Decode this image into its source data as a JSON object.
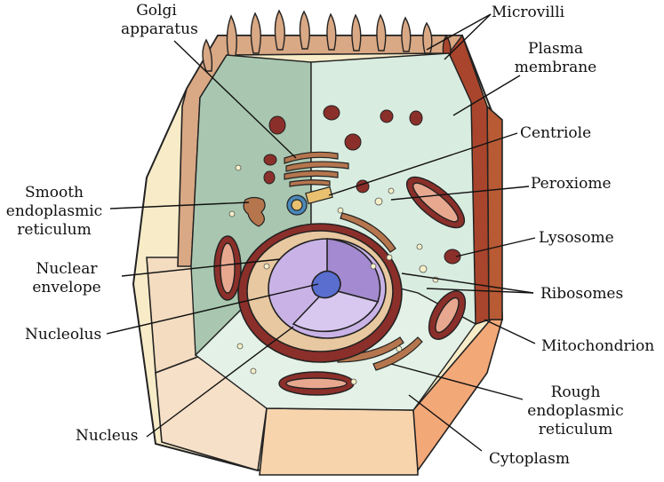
{
  "diagram": {
    "labels": {
      "golgi_1": "Golgi",
      "golgi_2": "apparatus",
      "microvilli": "Microvilli",
      "plasma_1": "Plasma",
      "plasma_2": "membrane",
      "centriole": "Centriole",
      "peroxiome": "Peroxiome",
      "smooth_1": "Smooth",
      "smooth_2": "endoplasmic",
      "smooth_3": "reticulum",
      "lysosome": "Lysosome",
      "nuclear_env_1": "Nuclear",
      "nuclear_env_2": "envelope",
      "ribosomes": "Ribosomes",
      "nucleolus": "Nucleolus",
      "mitochondrion": "Mitochondrion",
      "rough_1": "Rough",
      "rough_2": "endoplasmic",
      "rough_3": "reticulum",
      "nucleus": "Nucleus",
      "cytoplasm": "Cytoplasm"
    },
    "colors": {
      "cytoplasm_light": "#d9ece0",
      "cytoplasm_dark": "#a9c7b0",
      "outer_cream": "#f8ecc8",
      "membrane_tan": "#d9a884",
      "membrane_dark": "#a9452c",
      "organelle": "#8b2f2a",
      "nucleus_purple": "#c9b3e6",
      "nucleolus_blue": "#5a6ed0",
      "orange_face": "#f3a878"
    }
  }
}
